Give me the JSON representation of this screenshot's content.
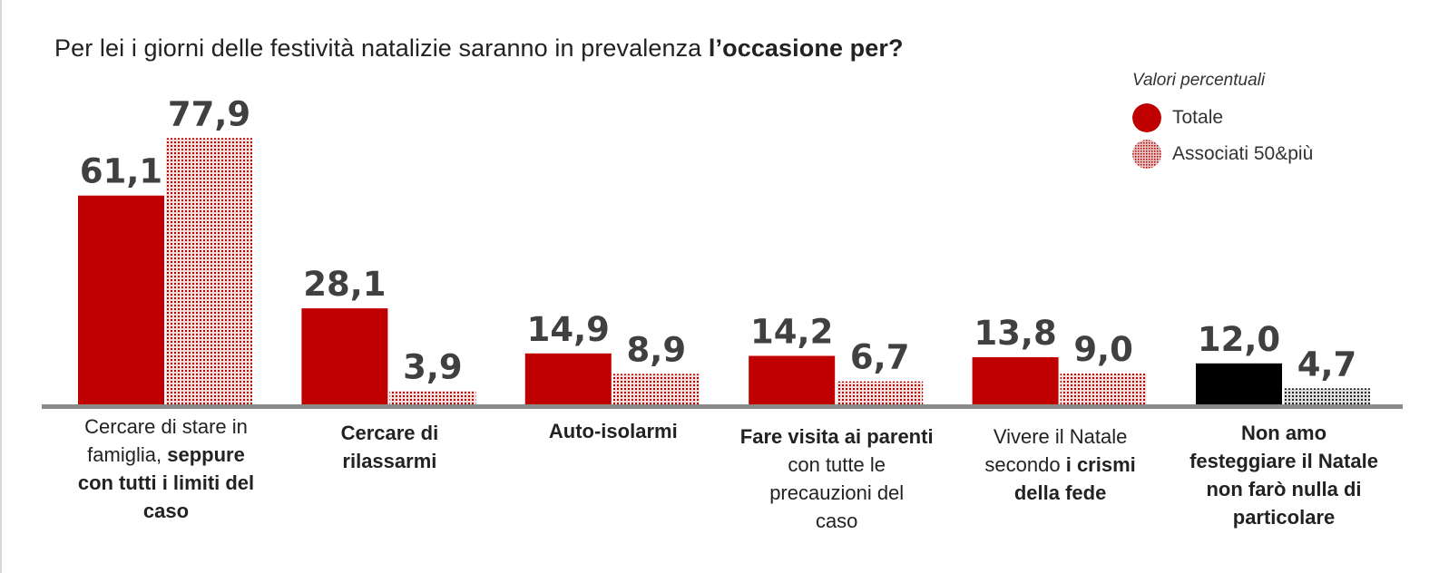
{
  "title": {
    "normal": "Per lei i giorni delle festività natalizie saranno in prevalenza ",
    "bold": "l’occasione per?"
  },
  "legend": {
    "caption": "Valori percentuali",
    "entries": [
      {
        "label": "Totale",
        "color": "#c00000",
        "pattern": "solid"
      },
      {
        "label": "Associati 50&più",
        "color": "#c00000",
        "pattern": "dotted"
      }
    ]
  },
  "chart_data": {
    "type": "bar",
    "title": "Per lei i giorni delle festività natalizie saranno in prevalenza l’occasione per?",
    "categories": [
      "Cercare di stare in famiglia, seppure con tutti i limiti del caso",
      "Cercare di rilassarmi",
      "Auto-isolarmi",
      "Fare visita ai parenti con tutte le precauzioni del caso",
      "Vivere il Natale secondo i crismi della fede",
      "Non amo festeggiare il Natale non farò nulla di particolare"
    ],
    "series": [
      {
        "name": "Totale",
        "values": [
          61.1,
          28.1,
          14.9,
          14.2,
          13.8,
          12.0
        ],
        "labels": [
          "61,1",
          "28,1",
          "14,9",
          "14,2",
          "13,8",
          "12,0"
        ],
        "color": "#c00000"
      },
      {
        "name": "Associati 50&più",
        "values": [
          77.9,
          3.9,
          8.9,
          6.7,
          9.0,
          4.7
        ],
        "labels": [
          "77,9",
          "3,9",
          "8,9",
          "6,7",
          "9,0",
          "4,7"
        ],
        "color": "#c00000"
      }
    ],
    "highlight": {
      "index": 5,
      "series": 0,
      "color": "#000000"
    },
    "ylim": [
      0,
      100
    ],
    "xlabel": "",
    "ylabel": "",
    "grid": false,
    "legend_position": "top-right"
  },
  "category_labels": [
    [
      {
        "t": "Cercare di stare in",
        "b": false
      },
      {
        "t": "famiglia, ",
        "b": false
      },
      {
        "t": "seppure",
        "b": true
      },
      {
        "t": "con tutti i limiti del",
        "b": true
      },
      {
        "t": "caso",
        "b": true
      }
    ],
    [
      {
        "t": "Cercare di",
        "b": true
      },
      {
        "t": "rilassarmi",
        "b": true
      }
    ],
    [
      {
        "t": "Auto-isolarmi",
        "b": true
      }
    ],
    [
      {
        "t": "Fare visita ai parenti",
        "b": true
      },
      {
        "t": "con tutte le",
        "b": false
      },
      {
        "t": "precauzioni del",
        "b": false
      },
      {
        "t": "caso",
        "b": false
      }
    ],
    [
      {
        "t": "Vivere il Natale",
        "b": false
      },
      {
        "t": "secondo ",
        "b": false
      },
      {
        "t": "i crismi",
        "b": true
      },
      {
        "t": "della fede",
        "b": true
      }
    ],
    [
      {
        "t": "Non amo",
        "b": true
      },
      {
        "t": "festeggiare il Natale",
        "b": true
      },
      {
        "t": "non farò nulla di",
        "b": true
      },
      {
        "t": "particolare",
        "b": true
      }
    ]
  ]
}
